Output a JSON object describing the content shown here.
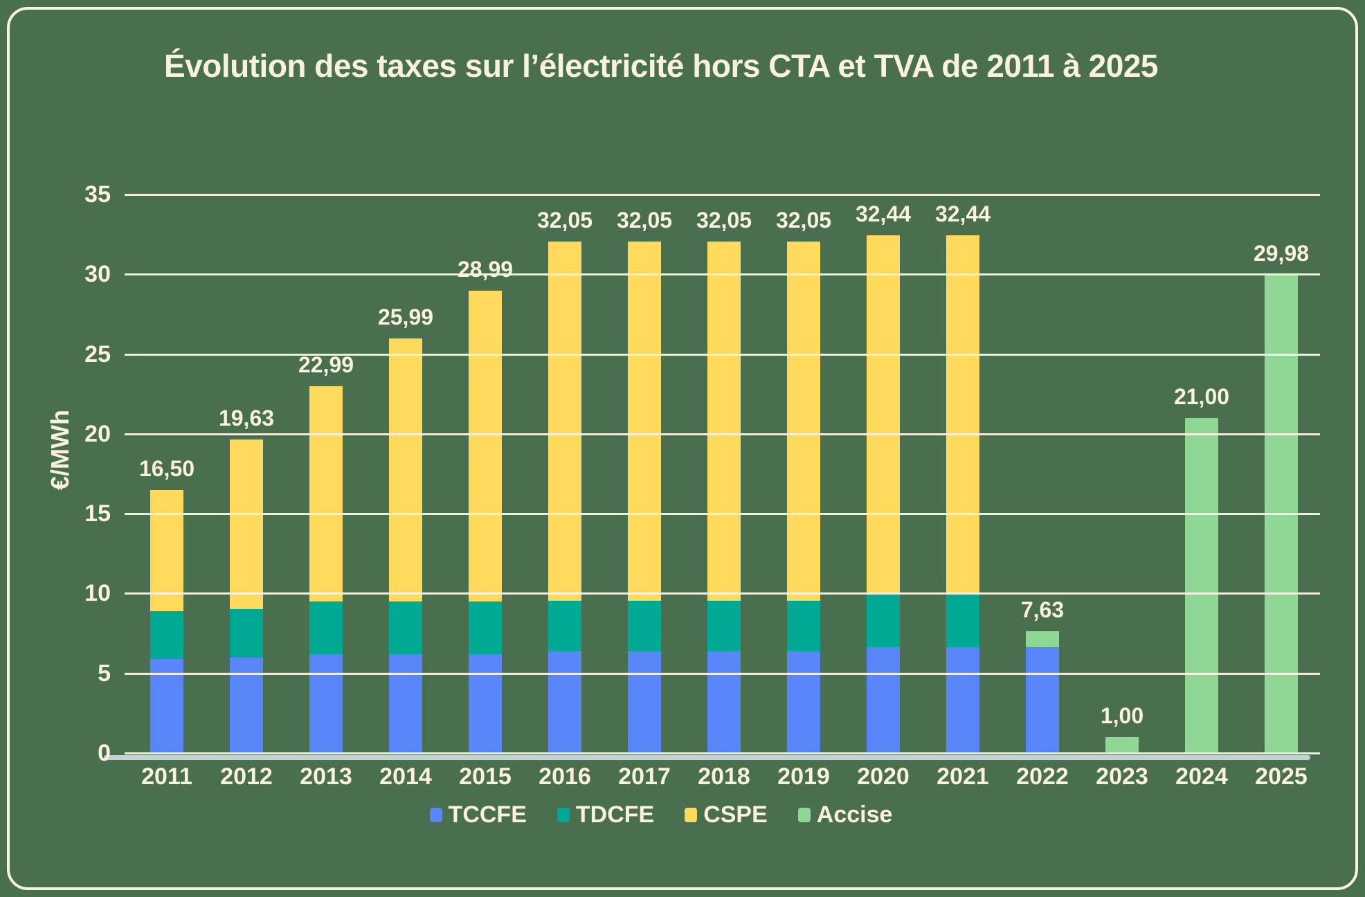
{
  "title": "Évolution des taxes sur l’électricité hors CTA et TVA de 2011 à 2025",
  "y_axis_title": "€/MWh",
  "colors": {
    "background": "#4A6F50",
    "frame": "#F9F2E0",
    "text": "#F8F2DF",
    "gridline": "rgba(248,243,227,0.95)",
    "axis_line": "#C7CED6",
    "tccfe": "#5885F7",
    "tdcfe": "#00A994",
    "cspe": "#FFDA5C",
    "accise": "#90D797"
  },
  "legend": [
    {
      "label": "TCCFE",
      "color_key": "tccfe"
    },
    {
      "label": "TDCFE",
      "color_key": "tdcfe"
    },
    {
      "label": "CSPE",
      "color_key": "cspe"
    },
    {
      "label": "Accise",
      "color_key": "accise"
    }
  ],
  "chart_data": {
    "type": "bar",
    "stacked": true,
    "title": "Évolution des taxes sur l’électricité hors CTA et TVA de 2011 à 2025",
    "xlabel": "",
    "ylabel": "€/MWh",
    "ylim": [
      0,
      35
    ],
    "ytick_step": 5,
    "ytick_labels": [
      "0",
      "5",
      "10",
      "15",
      "20",
      "25",
      "30",
      "35"
    ],
    "grid": true,
    "legend_position": "bottom",
    "categories": [
      "2011",
      "2012",
      "2013",
      "2014",
      "2015",
      "2016",
      "2017",
      "2018",
      "2019",
      "2020",
      "2021",
      "2022",
      "2023",
      "2024",
      "2025"
    ],
    "series": [
      {
        "name": "TCCFE",
        "color_key": "tccfe",
        "values": [
          5.9,
          6.0,
          6.2,
          6.2,
          6.2,
          6.37,
          6.37,
          6.37,
          6.37,
          6.63,
          6.63,
          6.63,
          0,
          0,
          0
        ]
      },
      {
        "name": "TDCFE",
        "color_key": "tdcfe",
        "values": [
          3.0,
          3.0,
          3.29,
          3.29,
          3.29,
          3.18,
          3.18,
          3.18,
          3.18,
          3.31,
          3.31,
          0,
          0,
          0,
          0
        ]
      },
      {
        "name": "CSPE",
        "color_key": "cspe",
        "values": [
          7.6,
          10.63,
          13.5,
          16.5,
          19.5,
          22.5,
          22.5,
          22.5,
          22.5,
          22.5,
          22.5,
          0,
          0,
          0,
          0
        ]
      },
      {
        "name": "Accise",
        "color_key": "accise",
        "values": [
          0,
          0,
          0,
          0,
          0,
          0,
          0,
          0,
          0,
          0,
          0,
          1.0,
          1.0,
          21.0,
          29.98
        ]
      }
    ],
    "totals": [
      16.5,
      19.63,
      22.99,
      25.99,
      28.99,
      32.05,
      32.05,
      32.05,
      32.05,
      32.44,
      32.44,
      7.63,
      1.0,
      21.0,
      29.98
    ],
    "total_labels": [
      "16,50",
      "19,63",
      "22,99",
      "25,99",
      "28,99",
      "32,05",
      "32,05",
      "32,05",
      "32,05",
      "32,44",
      "32,44",
      "7,63",
      "1,00",
      "21,00",
      "29,98"
    ]
  }
}
